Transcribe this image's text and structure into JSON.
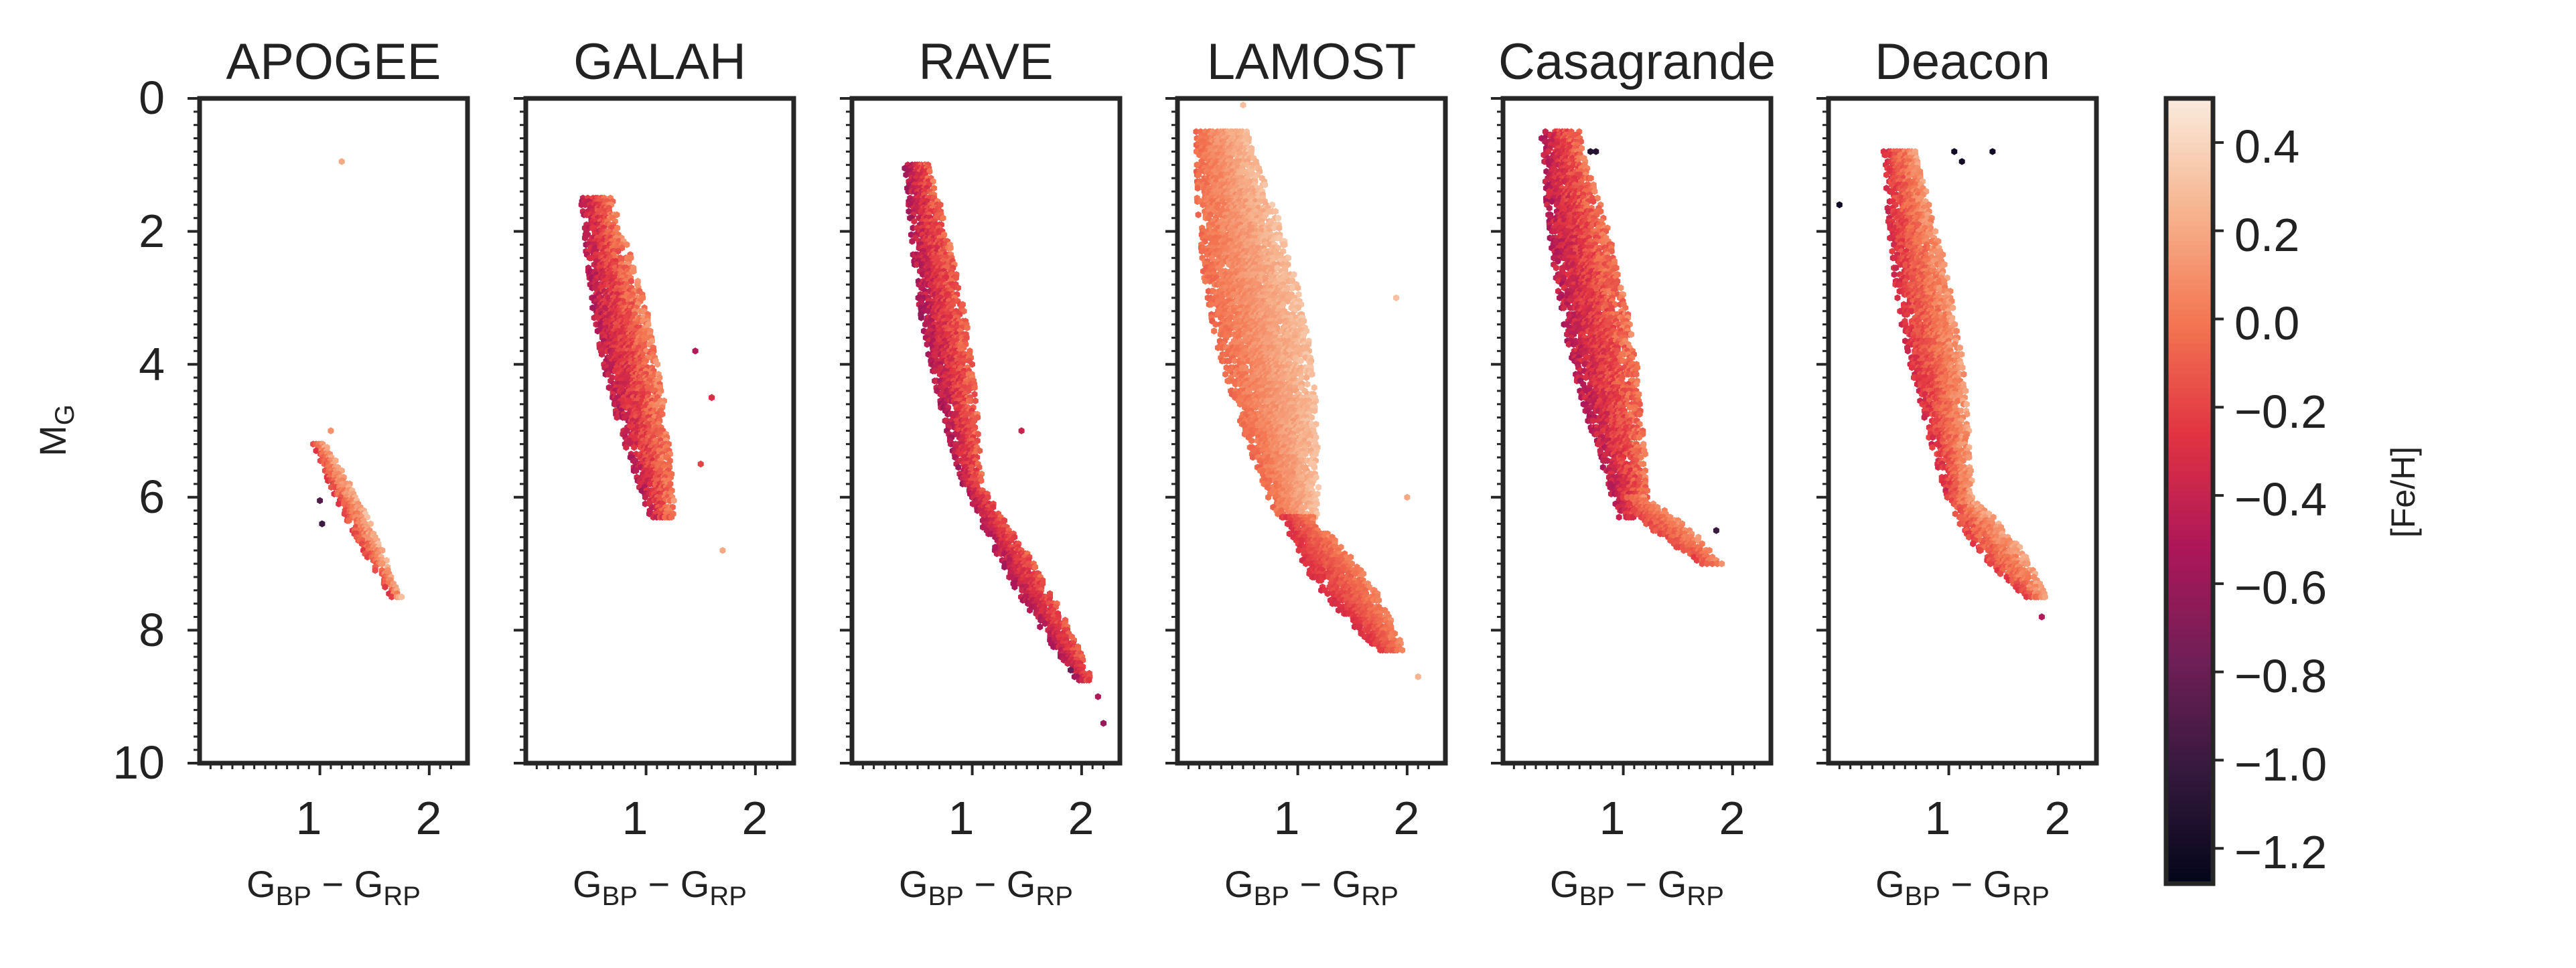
{
  "chart_data": {
    "type": "hexbin",
    "figure": "Gaia colour-magnitude diagrams coloured by [Fe/H] for six spectroscopic surveys",
    "xlim": [
      -0.1,
      2.35
    ],
    "ylim": [
      10,
      0
    ],
    "y_inverted": true,
    "xticks": [
      1,
      2
    ],
    "yticks": [
      0,
      2,
      4,
      6,
      8,
      10
    ],
    "xlabel": {
      "main": "G",
      "sub1": "BP",
      "minus": " − ",
      "main2": "G",
      "sub2": "RP"
    },
    "ylabel": {
      "main": "M",
      "sub": "G"
    },
    "colorbar": {
      "label": "[Fe/H]",
      "vmin": -1.28,
      "vmax": 0.5,
      "ticks": [
        0.4,
        0.2,
        0.0,
        -0.2,
        -0.4,
        -0.6,
        -0.8,
        -1.0,
        -1.2
      ],
      "tick_labels": [
        "0.4",
        "0.2",
        "0.0",
        "−0.2",
        "−0.4",
        "−0.6",
        "−0.8",
        "−1.0",
        "−1.2"
      ],
      "colormap": "rocket",
      "colors": [
        "#03051a",
        "#35193e",
        "#701f57",
        "#ad1759",
        "#e13342",
        "#f37651",
        "#f6b48f",
        "#faebdd"
      ]
    },
    "panels": [
      {
        "title": "APOGEE",
        "regions": [
          {
            "color_start": 1.0,
            "color_end": 1.7,
            "mg_start": 5.2,
            "mg_end": 7.5,
            "width": 0.2,
            "feh_blue": -0.2,
            "feh_red": 0.25,
            "feh_spread": 0.2
          }
        ],
        "points": [
          {
            "color": 1.2,
            "mg": 0.95,
            "feh": 0.2
          },
          {
            "color": 1.0,
            "mg": 6.05,
            "feh": -0.9
          },
          {
            "color": 1.02,
            "mg": 6.4,
            "feh": -1.0
          },
          {
            "color": 1.1,
            "mg": 5.0,
            "feh": 0.1
          }
        ]
      },
      {
        "title": "GALAH",
        "regions": [
          {
            "color_start": 0.55,
            "color_end": 1.15,
            "mg_start": 1.5,
            "mg_end": 6.3,
            "width": 0.5,
            "feh_blue": -0.45,
            "feh_red": 0.05,
            "feh_spread": 0.25
          }
        ],
        "points": [
          {
            "color": 1.6,
            "mg": 4.5,
            "feh": -0.3
          },
          {
            "color": 1.5,
            "mg": 5.5,
            "feh": -0.2
          },
          {
            "color": 1.7,
            "mg": 6.8,
            "feh": 0.2
          },
          {
            "color": 1.45,
            "mg": 3.8,
            "feh": -0.5
          }
        ]
      },
      {
        "title": "RAVE",
        "regions": [
          {
            "color_start": 0.5,
            "color_end": 1.0,
            "mg_start": 1.0,
            "mg_end": 5.8,
            "width": 0.4,
            "feh_blue": -0.5,
            "feh_red": -0.05,
            "feh_spread": 0.25
          },
          {
            "color_start": 1.0,
            "color_end": 2.05,
            "mg_start": 5.8,
            "mg_end": 8.8,
            "width": 0.3,
            "feh_blue": -0.5,
            "feh_red": -0.1,
            "feh_spread": 0.2
          }
        ],
        "points": [
          {
            "color": 2.2,
            "mg": 9.4,
            "feh": -0.6
          },
          {
            "color": 2.15,
            "mg": 9.0,
            "feh": -0.5
          },
          {
            "color": 1.9,
            "mg": 8.6,
            "feh": -0.8
          },
          {
            "color": 1.45,
            "mg": 5.0,
            "feh": -0.4
          }
        ]
      },
      {
        "title": "LAMOST",
        "regions": [
          {
            "color_start": 0.3,
            "color_end": 1.0,
            "mg_start": 0.5,
            "mg_end": 6.3,
            "width": 0.85,
            "feh_blue": -0.05,
            "feh_red": 0.3,
            "feh_spread": 0.12
          },
          {
            "color_start": 1.0,
            "color_end": 1.85,
            "mg_start": 6.3,
            "mg_end": 8.3,
            "width": 0.5,
            "feh_blue": -0.3,
            "feh_red": 0.05,
            "feh_spread": 0.12
          }
        ],
        "points": [
          {
            "color": 0.5,
            "mg": 0.1,
            "feh": 0.3
          },
          {
            "color": 2.1,
            "mg": 8.7,
            "feh": 0.25
          },
          {
            "color": 2.0,
            "mg": 6.0,
            "feh": 0.2
          },
          {
            "color": 1.9,
            "mg": 3.0,
            "feh": 0.3
          }
        ]
      },
      {
        "title": "Casagrande",
        "regions": [
          {
            "color_start": 0.42,
            "color_end": 1.1,
            "mg_start": 0.5,
            "mg_end": 6.3,
            "width": 0.6,
            "feh_blue": -0.45,
            "feh_red": 0.0,
            "feh_spread": 0.25
          },
          {
            "color_start": 1.1,
            "color_end": 1.8,
            "mg_start": 6.0,
            "mg_end": 7.0,
            "width": 0.35,
            "feh_blue": -0.2,
            "feh_red": 0.1,
            "feh_spread": 0.15
          }
        ],
        "points": [
          {
            "color": 0.7,
            "mg": 0.8,
            "feh": -1.1
          },
          {
            "color": 0.75,
            "mg": 0.8,
            "feh": -1.1
          },
          {
            "color": 1.9,
            "mg": 7.0,
            "feh": 0.1
          },
          {
            "color": 1.85,
            "mg": 6.5,
            "feh": -1.0
          }
        ]
      },
      {
        "title": "Deacon",
        "regions": [
          {
            "color_start": 0.55,
            "color_end": 1.1,
            "mg_start": 0.8,
            "mg_end": 6.0,
            "width": 0.5,
            "feh_blue": -0.3,
            "feh_red": 0.15,
            "feh_spread": 0.2
          },
          {
            "color_start": 1.1,
            "color_end": 1.8,
            "mg_start": 6.0,
            "mg_end": 7.5,
            "width": 0.4,
            "feh_blue": -0.2,
            "feh_red": 0.2,
            "feh_spread": 0.2
          }
        ],
        "points": [
          {
            "color": 0.0,
            "mg": 1.6,
            "feh": -1.2
          },
          {
            "color": 1.05,
            "mg": 0.8,
            "feh": -1.2
          },
          {
            "color": 1.12,
            "mg": 0.95,
            "feh": -1.2
          },
          {
            "color": 1.4,
            "mg": 0.8,
            "feh": -1.2
          },
          {
            "color": 1.85,
            "mg": 7.8,
            "feh": -0.5
          }
        ]
      }
    ]
  }
}
